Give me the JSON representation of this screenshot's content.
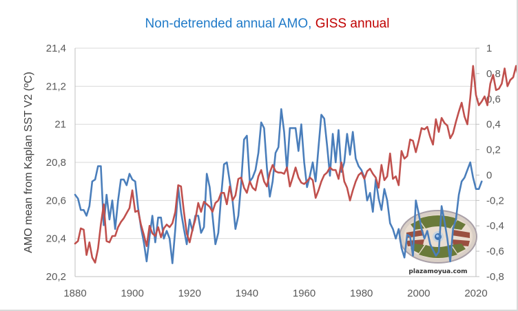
{
  "chart_data": {
    "type": "line",
    "title": {
      "parts": [
        {
          "text": "Non-detrended annual AMO, ",
          "color": "#1f7ac8"
        },
        {
          "text": "GISS annual",
          "color": "#c00000"
        }
      ]
    },
    "xlabel": "",
    "ylabel_left": "AMO mean from Kaplan SST V2 (ºC)",
    "ylabel_right": "",
    "xlim": [
      1880,
      2020
    ],
    "x_ticks": [
      "1880",
      "1900",
      "1920",
      "1940",
      "1960",
      "1980",
      "2000",
      "2020"
    ],
    "ylim_left": [
      20.2,
      21.4
    ],
    "y_ticks_left": [
      "20,2",
      "20,4",
      "20,6",
      "20,8",
      "21",
      "21,2",
      "21,4"
    ],
    "ylim_right": [
      -0.8,
      1.0
    ],
    "y_ticks_right": [
      "-0,8",
      "-0,6",
      "-0,4",
      "-0,2",
      "0",
      "0,2",
      "0,4",
      "0,6",
      "0,8",
      "1"
    ],
    "grid": true,
    "legend": "none",
    "series": [
      {
        "name": "Non-detrended annual AMO",
        "axis": "left",
        "color": "#4a7ebb",
        "x_start": 1880,
        "values": [
          20.63,
          20.61,
          20.55,
          20.55,
          20.52,
          20.57,
          20.7,
          20.71,
          20.78,
          20.78,
          20.47,
          20.63,
          20.5,
          20.6,
          20.45,
          20.6,
          20.71,
          20.71,
          20.68,
          20.74,
          20.71,
          20.7,
          20.56,
          20.46,
          20.38,
          20.28,
          20.41,
          20.52,
          20.38,
          20.51,
          20.51,
          20.4,
          20.44,
          20.4,
          20.27,
          20.45,
          20.67,
          20.54,
          20.45,
          20.37,
          20.5,
          20.44,
          20.52,
          20.52,
          20.43,
          20.46,
          20.74,
          20.67,
          20.52,
          20.37,
          20.43,
          20.62,
          20.79,
          20.8,
          20.7,
          20.6,
          20.45,
          20.52,
          20.69,
          20.92,
          20.94,
          20.7,
          20.72,
          20.76,
          20.85,
          21.01,
          20.98,
          20.77,
          20.62,
          20.7,
          20.85,
          20.88,
          21.08,
          20.96,
          20.76,
          20.98,
          20.98,
          20.98,
          20.86,
          21.0,
          20.8,
          20.67,
          20.73,
          20.8,
          20.7,
          20.88,
          21.05,
          21.03,
          20.89,
          20.73,
          20.95,
          20.8,
          20.97,
          20.75,
          20.8,
          20.95,
          20.84,
          20.96,
          20.82,
          20.78,
          20.76,
          20.72,
          20.6,
          20.64,
          20.54,
          20.71,
          20.61,
          20.55,
          20.66,
          20.6,
          20.48,
          20.45,
          20.4,
          20.45,
          20.35,
          20.3,
          20.42,
          20.41,
          20.31,
          20.6,
          20.53,
          20.45,
          20.4,
          20.44,
          20.37,
          20.34,
          20.31,
          20.33,
          20.57,
          20.49,
          20.4,
          20.28,
          20.45,
          20.5,
          20.63,
          20.7,
          20.72,
          20.76,
          20.8,
          20.72,
          20.66,
          20.66,
          20.7
        ],
        "note": "values estimated from plot; series spans ~1880-2016"
      },
      {
        "name": "GISS annual",
        "axis": "right",
        "color": "#c0504d",
        "x_start": 1880,
        "values": [
          -0.54,
          -0.52,
          -0.42,
          -0.43,
          -0.63,
          -0.53,
          -0.65,
          -0.69,
          -0.58,
          -0.39,
          -0.23,
          -0.52,
          -0.53,
          -0.48,
          -0.48,
          -0.41,
          -0.37,
          -0.34,
          -0.3,
          -0.26,
          -0.12,
          -0.29,
          -0.28,
          -0.39,
          -0.47,
          -0.56,
          -0.4,
          -0.46,
          -0.48,
          -0.41,
          -0.49,
          -0.42,
          -0.39,
          -0.41,
          -0.38,
          -0.29,
          -0.08,
          -0.09,
          -0.29,
          -0.46,
          -0.53,
          -0.43,
          -0.35,
          -0.22,
          -0.29,
          -0.21,
          -0.23,
          -0.25,
          -0.29,
          -0.22,
          -0.2,
          -0.14,
          -0.14,
          -0.23,
          -0.09,
          -0.2,
          -0.16,
          -0.03,
          -0.02,
          -0.1,
          -0.14,
          -0.05,
          -0.1,
          -0.12,
          -0.01,
          0.04,
          -0.05,
          -0.09,
          0.02,
          0.08,
          0.03,
          0.02,
          0.02,
          0.01,
          0.06,
          -0.09,
          -0.02,
          0.06,
          -0.02,
          -0.06,
          -0.07,
          -0.05,
          -0.02,
          -0.04,
          -0.18,
          -0.12,
          -0.05,
          0.0,
          0.02,
          0.06,
          0.04,
          0.04,
          -0.03,
          0.1,
          -0.05,
          -0.1,
          -0.2,
          -0.12,
          -0.05,
          0.0,
          0.02,
          -0.03,
          0.03,
          0.05,
          0.01,
          -0.02,
          -0.1,
          0.08,
          -0.04,
          -0.01,
          0.17,
          -0.03,
          -0.01,
          -0.08,
          0.19,
          0.13,
          0.15,
          0.28,
          0.27,
          0.18,
          0.27,
          0.37,
          0.36,
          0.38,
          0.3,
          0.24,
          0.44,
          0.34,
          0.45,
          0.41,
          0.39,
          0.29,
          0.33,
          0.42,
          0.5,
          0.57,
          0.46,
          0.4,
          0.61,
          0.86,
          0.63,
          0.55,
          0.58,
          0.62,
          0.55,
          0.72,
          0.79,
          0.67,
          0.68,
          0.72,
          0.84,
          0.7,
          0.75,
          0.77,
          0.86,
          0.74,
          0.7,
          0.8,
          0.9,
          0.79,
          0.76,
          0.78,
          0.82,
          0.86,
          0.99
        ],
        "note": "values estimated from plot; series spans ~1880-2015"
      }
    ]
  },
  "watermark": {
    "text": "plazamoyua.com",
    "icon": "plaza-logo-icon"
  }
}
